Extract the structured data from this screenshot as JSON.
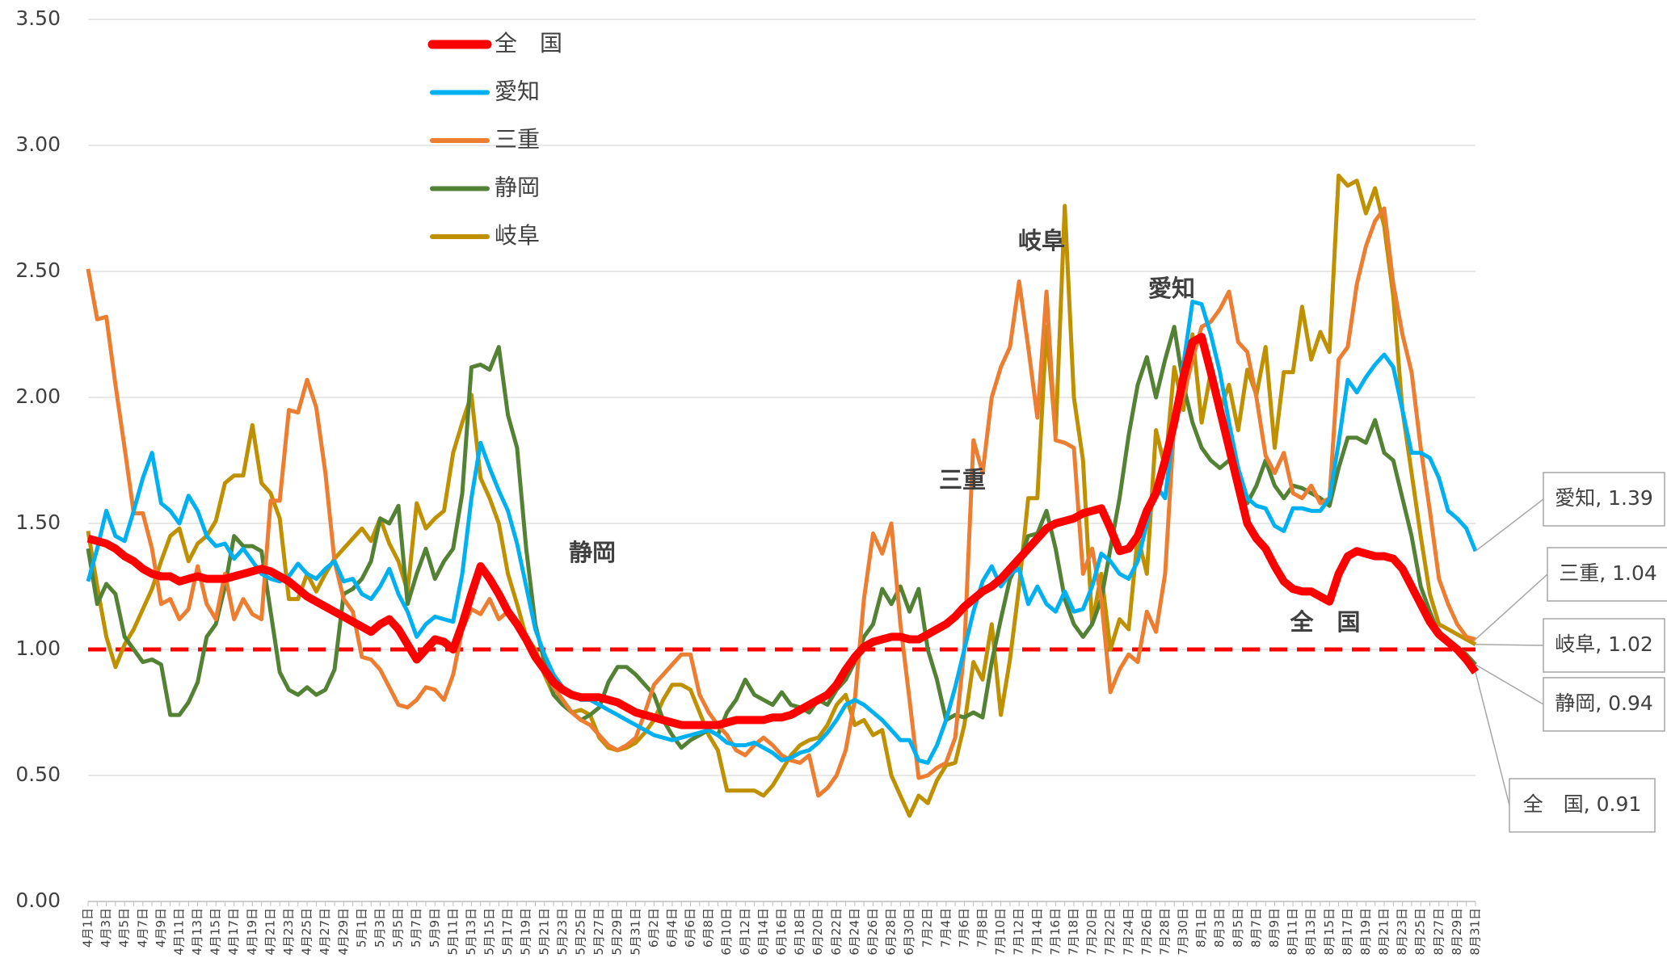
{
  "chart_data": {
    "type": "line",
    "categories": [
      "4月1日",
      null,
      "4月3日",
      null,
      "4月5日",
      null,
      "4月7日",
      null,
      "4月9日",
      null,
      "4月11日",
      null,
      "4月13日",
      null,
      "4月15日",
      null,
      "4月17日",
      null,
      "4月19日",
      null,
      "4月21日",
      null,
      "4月23日",
      null,
      "4月25日",
      null,
      "4月27日",
      null,
      "4月29日",
      null,
      "5月1日",
      null,
      "5月3日",
      null,
      "5月5日",
      null,
      "5月7日",
      null,
      "5月9日",
      null,
      "5月11日",
      null,
      "5月13日",
      null,
      "5月15日",
      null,
      "5月17日",
      null,
      "5月19日",
      null,
      "5月21日",
      null,
      "5月23日",
      null,
      "5月25日",
      null,
      "5月27日",
      null,
      "5月29日",
      null,
      "5月31日",
      null,
      "6月2日",
      null,
      "6月4日",
      null,
      "6月6日",
      null,
      "6月8日",
      null,
      "6月10日",
      null,
      "6月12日",
      null,
      "6月14日",
      null,
      "6月16日",
      null,
      "6月18日",
      null,
      "6月20日",
      null,
      "6月22日",
      null,
      "6月24日",
      null,
      "6月26日",
      null,
      "6月28日",
      null,
      "6月30日",
      null,
      "7月2日",
      null,
      "7月4日",
      null,
      "7月6日",
      null,
      "7月8日",
      null,
      "7月10日",
      null,
      "7月12日",
      null,
      "7月14日",
      null,
      "7月16日",
      null,
      "7月18日",
      null,
      "7月20日",
      null,
      "7月22日",
      null,
      "7月24日",
      null,
      "7月26日",
      null,
      "7月28日",
      null,
      "7月30日",
      null,
      "8月1日",
      null,
      "8月3日",
      null,
      "8月5日",
      null,
      "8月7日",
      null,
      "8月9日",
      null,
      "8月11日",
      null,
      "8月13日",
      null,
      "8月15日",
      null,
      "8月17日",
      null,
      "8月19日",
      null,
      "8月21日",
      null,
      "8月23日",
      null,
      "8月25日",
      null,
      "8月27日",
      null,
      "8月29日",
      null,
      "8月31日"
    ],
    "series": [
      {
        "name": "全　国",
        "color": "#ff0000",
        "values": [
          1.44,
          1.43,
          1.42,
          1.4,
          1.37,
          1.35,
          1.32,
          1.3,
          1.29,
          1.29,
          1.27,
          1.28,
          1.29,
          1.28,
          1.28,
          1.28,
          1.29,
          1.3,
          1.31,
          1.32,
          1.31,
          1.29,
          1.27,
          1.24,
          1.21,
          1.19,
          1.17,
          1.15,
          1.13,
          1.11,
          1.09,
          1.07,
          1.1,
          1.12,
          1.08,
          1.02,
          0.96,
          1.0,
          1.04,
          1.03,
          1.0,
          1.1,
          1.22,
          1.33,
          1.28,
          1.22,
          1.15,
          1.1,
          1.04,
          0.97,
          0.92,
          0.87,
          0.84,
          0.82,
          0.81,
          0.81,
          0.81,
          0.8,
          0.79,
          0.77,
          0.75,
          0.74,
          0.73,
          0.72,
          0.71,
          0.7,
          0.7,
          0.7,
          0.7,
          0.7,
          0.71,
          0.72,
          0.72,
          0.72,
          0.72,
          0.73,
          0.73,
          0.74,
          0.76,
          0.78,
          0.8,
          0.82,
          0.86,
          0.92,
          0.97,
          1.01,
          1.03,
          1.04,
          1.05,
          1.05,
          1.04,
          1.04,
          1.06,
          1.08,
          1.1,
          1.13,
          1.17,
          1.2,
          1.23,
          1.25,
          1.28,
          1.32,
          1.36,
          1.4,
          1.44,
          1.48,
          1.5,
          1.51,
          1.52,
          1.54,
          1.55,
          1.56,
          1.48,
          1.39,
          1.4,
          1.45,
          1.55,
          1.62,
          1.75,
          1.9,
          2.08,
          2.22,
          2.24,
          2.1,
          1.95,
          1.8,
          1.65,
          1.5,
          1.44,
          1.4,
          1.33,
          1.27,
          1.24,
          1.23,
          1.23,
          1.21,
          1.19,
          1.3,
          1.37,
          1.39,
          1.38,
          1.37,
          1.37,
          1.36,
          1.32,
          1.25,
          1.18,
          1.11,
          1.06,
          1.03,
          1.0,
          0.96,
          0.91
        ]
      },
      {
        "name": "愛知",
        "color": "#00b0f0",
        "values": [
          1.27,
          1.4,
          1.55,
          1.45,
          1.43,
          1.55,
          1.68,
          1.78,
          1.58,
          1.55,
          1.5,
          1.61,
          1.55,
          1.45,
          1.41,
          1.42,
          1.36,
          1.4,
          1.35,
          1.3,
          1.28,
          1.27,
          1.29,
          1.34,
          1.3,
          1.28,
          1.32,
          1.35,
          1.27,
          1.28,
          1.22,
          1.2,
          1.25,
          1.32,
          1.22,
          1.15,
          1.05,
          1.1,
          1.13,
          1.12,
          1.11,
          1.3,
          1.6,
          1.82,
          1.72,
          1.63,
          1.55,
          1.42,
          1.25,
          1.08,
          0.98,
          0.9,
          0.85,
          0.82,
          0.8,
          0.8,
          0.78,
          0.76,
          0.74,
          0.72,
          0.7,
          0.68,
          0.66,
          0.65,
          0.64,
          0.65,
          0.66,
          0.67,
          0.68,
          0.66,
          0.63,
          0.62,
          0.62,
          0.63,
          0.61,
          0.59,
          0.56,
          0.57,
          0.59,
          0.6,
          0.63,
          0.67,
          0.72,
          0.78,
          0.8,
          0.78,
          0.75,
          0.72,
          0.68,
          0.64,
          0.64,
          0.56,
          0.55,
          0.62,
          0.72,
          0.85,
          1.0,
          1.15,
          1.27,
          1.33,
          1.25,
          1.3,
          1.32,
          1.18,
          1.25,
          1.18,
          1.15,
          1.23,
          1.15,
          1.16,
          1.25,
          1.38,
          1.35,
          1.3,
          1.28,
          1.35,
          1.5,
          1.65,
          1.6,
          1.9,
          2.13,
          2.38,
          2.37,
          2.25,
          2.1,
          1.9,
          1.72,
          1.6,
          1.57,
          1.56,
          1.49,
          1.47,
          1.56,
          1.56,
          1.55,
          1.55,
          1.6,
          1.82,
          2.07,
          2.02,
          2.08,
          2.13,
          2.17,
          2.12,
          1.95,
          1.78,
          1.78,
          1.76,
          1.68,
          1.55,
          1.52,
          1.48,
          1.39
        ]
      },
      {
        "name": "三重",
        "color": "#ed7d31",
        "values": [
          2.51,
          2.31,
          2.32,
          2.05,
          1.8,
          1.54,
          1.54,
          1.4,
          1.18,
          1.2,
          1.12,
          1.16,
          1.33,
          1.18,
          1.12,
          1.3,
          1.12,
          1.2,
          1.14,
          1.12,
          1.59,
          1.59,
          1.95,
          1.94,
          2.07,
          1.96,
          1.7,
          1.35,
          1.2,
          1.15,
          0.97,
          0.96,
          0.92,
          0.85,
          0.78,
          0.77,
          0.8,
          0.85,
          0.84,
          0.8,
          0.9,
          1.08,
          1.16,
          1.14,
          1.2,
          1.12,
          1.15,
          1.1,
          1.05,
          0.98,
          0.92,
          0.85,
          0.8,
          0.75,
          0.72,
          0.7,
          0.66,
          0.62,
          0.6,
          0.62,
          0.65,
          0.75,
          0.86,
          0.9,
          0.94,
          0.98,
          0.98,
          0.82,
          0.75,
          0.7,
          0.66,
          0.6,
          0.58,
          0.62,
          0.65,
          0.62,
          0.58,
          0.56,
          0.55,
          0.58,
          0.42,
          0.45,
          0.5,
          0.6,
          0.8,
          1.2,
          1.46,
          1.38,
          1.5,
          1.1,
          0.8,
          0.49,
          0.5,
          0.53,
          0.55,
          0.65,
          1.0,
          1.83,
          1.7,
          2.0,
          2.12,
          2.2,
          2.46,
          2.2,
          1.92,
          2.42,
          1.83,
          1.82,
          1.8,
          1.3,
          1.4,
          1.2,
          0.83,
          0.92,
          0.98,
          0.95,
          1.15,
          1.07,
          1.3,
          1.9,
          2.0,
          2.15,
          2.28,
          2.3,
          2.35,
          2.42,
          2.22,
          2.18,
          2.0,
          1.77,
          1.7,
          1.78,
          1.62,
          1.6,
          1.65,
          1.58,
          1.6,
          2.15,
          2.2,
          2.45,
          2.6,
          2.7,
          2.75,
          2.45,
          2.25,
          2.1,
          1.8,
          1.55,
          1.28,
          1.18,
          1.1,
          1.05,
          1.04
        ]
      },
      {
        "name": "静岡",
        "color": "#548235",
        "values": [
          1.4,
          1.18,
          1.26,
          1.22,
          1.05,
          1.0,
          0.95,
          0.96,
          0.94,
          0.74,
          0.74,
          0.79,
          0.87,
          1.05,
          1.1,
          1.25,
          1.45,
          1.41,
          1.41,
          1.39,
          1.15,
          0.91,
          0.84,
          0.82,
          0.85,
          0.82,
          0.84,
          0.92,
          1.22,
          1.24,
          1.28,
          1.35,
          1.52,
          1.5,
          1.57,
          1.18,
          1.3,
          1.4,
          1.28,
          1.35,
          1.4,
          1.62,
          2.12,
          2.13,
          2.11,
          2.2,
          1.93,
          1.8,
          1.4,
          1.1,
          0.95,
          0.82,
          0.78,
          0.75,
          0.72,
          0.74,
          0.77,
          0.87,
          0.93,
          0.93,
          0.9,
          0.86,
          0.82,
          0.72,
          0.66,
          0.61,
          0.64,
          0.66,
          0.68,
          0.66,
          0.75,
          0.8,
          0.88,
          0.82,
          0.8,
          0.78,
          0.83,
          0.78,
          0.77,
          0.75,
          0.8,
          0.78,
          0.84,
          0.88,
          0.95,
          1.05,
          1.1,
          1.24,
          1.18,
          1.25,
          1.15,
          1.24,
          1.0,
          0.88,
          0.72,
          0.74,
          0.73,
          0.75,
          0.73,
          0.95,
          1.12,
          1.28,
          1.35,
          1.45,
          1.46,
          1.55,
          1.4,
          1.2,
          1.1,
          1.05,
          1.1,
          1.2,
          1.4,
          1.6,
          1.85,
          2.05,
          2.16,
          2.0,
          2.15,
          2.28,
          2.05,
          1.9,
          1.8,
          1.75,
          1.72,
          1.75,
          1.68,
          1.58,
          1.65,
          1.75,
          1.65,
          1.6,
          1.65,
          1.64,
          1.62,
          1.6,
          1.57,
          1.72,
          1.84,
          1.84,
          1.82,
          1.91,
          1.78,
          1.75,
          1.6,
          1.45,
          1.25,
          1.15,
          1.06,
          1.03,
          1.01,
          0.98,
          0.94
        ]
      },
      {
        "name": "岐阜",
        "color": "#bf9000",
        "values": [
          1.47,
          1.25,
          1.05,
          0.93,
          1.02,
          1.08,
          1.16,
          1.24,
          1.35,
          1.45,
          1.48,
          1.35,
          1.42,
          1.45,
          1.51,
          1.66,
          1.69,
          1.69,
          1.89,
          1.66,
          1.62,
          1.52,
          1.2,
          1.2,
          1.3,
          1.23,
          1.3,
          1.36,
          1.4,
          1.44,
          1.48,
          1.43,
          1.52,
          1.42,
          1.35,
          1.23,
          1.58,
          1.48,
          1.52,
          1.55,
          1.78,
          1.9,
          2.01,
          1.68,
          1.6,
          1.5,
          1.3,
          1.18,
          1.05,
          1.0,
          0.9,
          0.82,
          0.78,
          0.75,
          0.76,
          0.74,
          0.65,
          0.61,
          0.6,
          0.61,
          0.63,
          0.67,
          0.72,
          0.8,
          0.86,
          0.86,
          0.84,
          0.75,
          0.66,
          0.6,
          0.44,
          0.44,
          0.44,
          0.44,
          0.42,
          0.46,
          0.52,
          0.58,
          0.62,
          0.64,
          0.65,
          0.7,
          0.78,
          0.82,
          0.7,
          0.72,
          0.66,
          0.68,
          0.5,
          0.42,
          0.34,
          0.42,
          0.39,
          0.48,
          0.54,
          0.55,
          0.7,
          0.95,
          0.88,
          1.1,
          0.74,
          0.96,
          1.25,
          1.6,
          1.6,
          2.28,
          1.85,
          2.76,
          2.0,
          1.75,
          1.1,
          1.3,
          1.0,
          1.12,
          1.08,
          1.45,
          1.3,
          1.87,
          1.72,
          2.12,
          1.95,
          2.25,
          1.9,
          2.1,
          1.95,
          2.05,
          1.87,
          2.11,
          2.01,
          2.2,
          1.8,
          2.1,
          2.1,
          2.36,
          2.15,
          2.26,
          2.18,
          2.88,
          2.84,
          2.86,
          2.73,
          2.83,
          2.68,
          2.4,
          1.95,
          1.7,
          1.45,
          1.22,
          1.1,
          1.08,
          1.06,
          1.04,
          1.02
        ]
      }
    ],
    "reference_line": {
      "value": 1.0,
      "color": "#ff0000"
    },
    "labels": [
      "全　国",
      "愛知",
      "三重",
      "静岡",
      "岐阜"
    ],
    "callouts": [
      "愛知, 1.39",
      "三重, 1.04",
      "岐阜, 1.02",
      "静岡, 0.94",
      "全　国, 0.91"
    ],
    "ylim": [
      0,
      3.5
    ],
    "yticks": [
      {
        "value": 0,
        "label": "0.00"
      },
      {
        "value": 0.5,
        "label": "0.50"
      },
      {
        "value": 1.0,
        "label": "1.00"
      },
      {
        "value": 1.5,
        "label": "1.50"
      },
      {
        "value": 2.0,
        "label": "2.00"
      },
      {
        "value": 2.5,
        "label": "2.50"
      },
      {
        "value": 3.0,
        "label": "3.00"
      },
      {
        "value": 3.5,
        "label": "3.50"
      }
    ],
    "grid": true
  }
}
